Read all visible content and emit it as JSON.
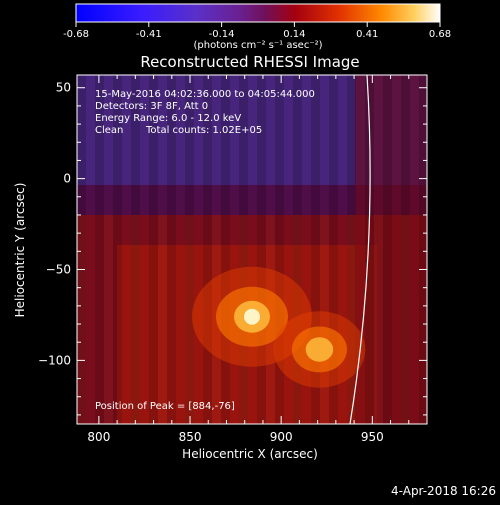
{
  "colorbar": {
    "ticks": [
      "-0.68",
      "-0.41",
      "-0.14",
      "0.14",
      "0.41",
      "0.68"
    ],
    "unit": "(photons cm⁻² s⁻¹ asec⁻²)",
    "range": [
      -0.68,
      0.68
    ]
  },
  "chart_data": {
    "type": "heatmap",
    "title": "Reconstructed RHESSI Image",
    "xlabel": "Heliocentric X (arcsec)",
    "ylabel": "Heliocentric Y (arcsec)",
    "xlim": [
      788,
      980
    ],
    "ylim": [
      -135,
      57
    ],
    "x_ticks": [
      "800",
      "850",
      "900",
      "950"
    ],
    "y_ticks": [
      "50",
      "0",
      "−50",
      "−100"
    ],
    "info_lines": [
      "15-May-2016 04:02:36.000 to 04:05:44.000",
      "Detectors: 3F 8F, Att 0",
      "Energy Range: 6.0 - 12.0 keV"
    ],
    "clean_label": "Clean",
    "total_counts_label": "Total counts: 1.02E+05",
    "peak_text": "Position of Peak = [884,-76]",
    "peak": {
      "x": 884,
      "y": -76
    },
    "sources": [
      {
        "x": 884,
        "y": -76,
        "intensity": 0.68
      },
      {
        "x": 921,
        "y": -94,
        "intensity": 0.52
      }
    ]
  },
  "footer": {
    "timestamp": "4-Apr-2018 16:26"
  }
}
